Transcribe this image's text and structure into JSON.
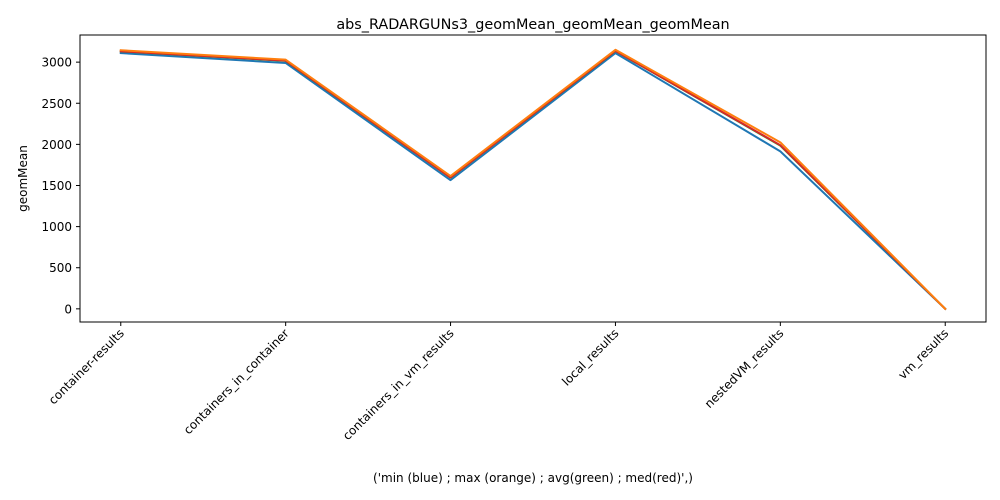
{
  "chart_data": {
    "type": "line",
    "title": "abs_RADARGUNs3_geomMean_geomMean_geomMean",
    "xlabel": "('min (blue) ; max (orange) ; avg(green) ; med(red)',)",
    "ylabel": "geomMean",
    "categories": [
      "container-results",
      "containers_in_container",
      "containers_in_vm_results",
      "local_results",
      "nestedVM_results",
      "vm_results"
    ],
    "ylim": [
      -160,
      3330
    ],
    "yticks": [
      0,
      500,
      1000,
      1500,
      2000,
      2500,
      3000
    ],
    "grid": false,
    "series": [
      {
        "name": "min",
        "color": "#1f77b4",
        "values": [
          3110,
          2990,
          1565,
          3110,
          1915,
          0
        ]
      },
      {
        "name": "max",
        "color": "#ff7f0e",
        "values": [
          3145,
          3030,
          1615,
          3150,
          2025,
          0
        ]
      },
      {
        "name": "avg",
        "color": "#2ca02c",
        "values": [
          3130,
          3015,
          1595,
          3135,
          1985,
          0
        ]
      },
      {
        "name": "med",
        "color": "#d62728",
        "values": [
          3132,
          3018,
          1597,
          3137,
          1990,
          0
        ]
      }
    ],
    "draw_order": [
      "min",
      "avg",
      "med",
      "max"
    ]
  }
}
